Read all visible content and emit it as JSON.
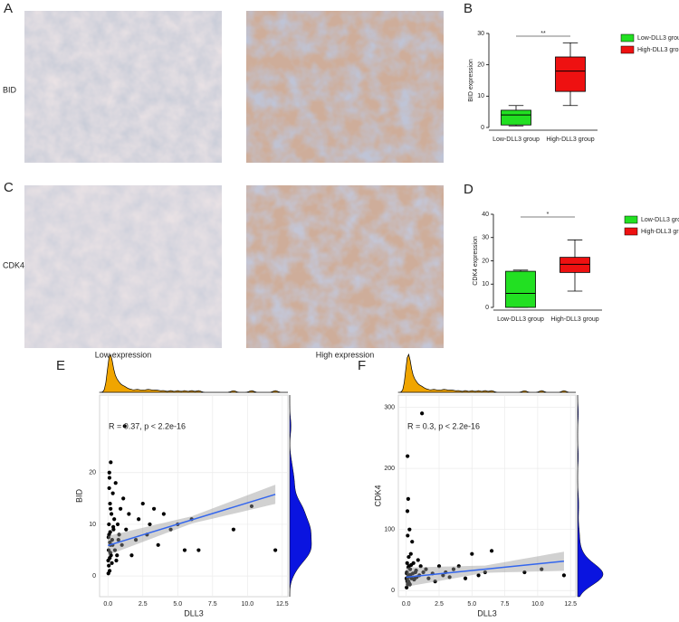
{
  "labels": {
    "panel_a": "A",
    "panel_b": "B",
    "panel_c": "C",
    "panel_d": "D",
    "panel_e": "E",
    "panel_f": "F",
    "row1": "BID",
    "row2": "CDK4",
    "caption_low": "Low expression",
    "caption_high": "High expression"
  },
  "chart_data": [
    {
      "type": "box",
      "ylabel": "BID expression",
      "significance": "**",
      "categories": [
        "Low-DLL3 group",
        "High-DLL3 group"
      ],
      "boxes": [
        {
          "name": "Low-DLL3 group",
          "color": "#22e022",
          "min": 0.5,
          "q1": 0.8,
          "median": 4,
          "q3": 5.5,
          "max": 7
        },
        {
          "name": "High-DLL3 group",
          "color": "#ee1111",
          "min": 7,
          "q1": 11.5,
          "median": 18,
          "q3": 22.5,
          "max": 27
        }
      ],
      "ylim": [
        0,
        30
      ],
      "yticks": [
        0,
        10,
        20,
        30
      ]
    },
    {
      "type": "box",
      "ylabel": "CDK4 expression",
      "significance": "*",
      "categories": [
        "Low-DLL3 group",
        "High-DLL3 group"
      ],
      "boxes": [
        {
          "name": "Low-DLL3 group",
          "color": "#22e022",
          "min": 0,
          "q1": 0,
          "median": 6,
          "q3": 15.5,
          "max": 16
        },
        {
          "name": "High-DLL3 group",
          "color": "#ee1111",
          "min": 7,
          "q1": 15,
          "median": 18.5,
          "q3": 21.5,
          "max": 29
        }
      ],
      "ylim": [
        0,
        40
      ],
      "yticks": [
        0,
        10,
        20,
        30,
        40
      ]
    },
    {
      "type": "scatter",
      "xlabel": "DLL3",
      "ylabel": "BID",
      "annotation": "R = 0.37, p < 2.2e-16",
      "color": "#000000",
      "fit_color": "#3366ee",
      "x": [
        0.02,
        0.05,
        0.08,
        0.1,
        0.12,
        0.15,
        0.18,
        0.2,
        0.22,
        0.25,
        0.3,
        0.35,
        0.4,
        0.45,
        0.5,
        0.55,
        0.6,
        0.7,
        0.8,
        0.9,
        1.0,
        1.1,
        1.2,
        1.3,
        1.5,
        1.7,
        2.0,
        2.2,
        2.5,
        2.8,
        3.0,
        3.3,
        3.6,
        4.0,
        4.5,
        5.0,
        5.5,
        6.0,
        6.5,
        9.0,
        10.3,
        12.0,
        0.03,
        0.06,
        0.09,
        0.11,
        0.14,
        0.17,
        0.04,
        0.07,
        0.13,
        0.16,
        0.19,
        0.28,
        0.33,
        0.38,
        0.65,
        0.75
      ],
      "y": [
        3,
        5,
        8,
        20,
        1,
        14,
        6,
        22,
        4,
        12,
        7,
        16,
        9,
        11,
        5,
        18,
        3,
        10,
        8,
        13,
        6,
        15,
        29,
        9,
        12,
        4,
        7,
        11,
        14,
        8,
        10,
        13,
        6,
        12,
        9,
        10,
        5,
        11,
        5,
        9,
        13.5,
        5,
        0.5,
        2,
        17,
        19,
        6.5,
        4.5,
        7.5,
        10,
        3.5,
        8.5,
        13,
        2.5,
        6,
        9.5,
        4,
        7
      ],
      "fit": {
        "x": [
          0,
          12
        ],
        "y": [
          5.9,
          15.8
        ]
      },
      "xlim": [
        -0.6,
        12.9
      ],
      "ylim": [
        -4,
        35
      ],
      "xticks": [
        {
          "value": 0,
          "label": "0.0"
        },
        {
          "value": 2.5,
          "label": "2.5"
        },
        {
          "value": 5,
          "label": "5.0"
        },
        {
          "value": 7.5,
          "label": "7.5"
        },
        {
          "value": 10,
          "label": "10.0"
        },
        {
          "value": 12.5,
          "label": "12.5"
        }
      ],
      "yticks": [
        0,
        10,
        20
      ]
    },
    {
      "type": "scatter",
      "xlabel": "DLL3",
      "ylabel": "CDK4",
      "annotation": "R = 0.3, p < 2.2e-16",
      "color": "#000000",
      "fit_color": "#3366ee",
      "x": [
        0.02,
        0.05,
        0.08,
        0.1,
        0.12,
        0.15,
        0.18,
        0.2,
        0.22,
        0.25,
        0.3,
        0.35,
        0.4,
        0.45,
        0.5,
        0.55,
        0.6,
        0.7,
        0.8,
        0.9,
        1.0,
        1.1,
        1.2,
        1.3,
        1.5,
        1.7,
        2.0,
        2.2,
        2.5,
        2.8,
        3.0,
        3.3,
        3.6,
        4.0,
        4.5,
        5.0,
        5.5,
        6.0,
        6.5,
        9.0,
        10.3,
        12.0,
        0.03,
        0.06,
        0.09,
        0.11,
        0.14,
        0.17,
        0.04,
        0.07,
        0.13,
        0.16,
        0.19,
        0.28,
        0.33,
        0.38,
        0.65,
        0.75
      ],
      "y": [
        20,
        30,
        15,
        220,
        10,
        150,
        25,
        40,
        12,
        100,
        35,
        60,
        20,
        80,
        28,
        45,
        18,
        30,
        22,
        50,
        25,
        40,
        290,
        30,
        35,
        20,
        28,
        15,
        40,
        25,
        30,
        22,
        35,
        40,
        20,
        60,
        25,
        30,
        65,
        30,
        35,
        25,
        5,
        18,
        130,
        90,
        22,
        15,
        28,
        45,
        12,
        38,
        55,
        10,
        26,
        42,
        20,
        33
      ],
      "fit": {
        "x": [
          0,
          12
        ],
        "y": [
          22,
          48
        ]
      },
      "xlim": [
        -0.6,
        12.9
      ],
      "ylim": [
        -10,
        320
      ],
      "xticks": [
        {
          "value": 0,
          "label": "0.0"
        },
        {
          "value": 2.5,
          "label": "2.5"
        },
        {
          "value": 5,
          "label": "5.0"
        },
        {
          "value": 7.5,
          "label": "7.5"
        },
        {
          "value": 10,
          "label": "10.0"
        },
        {
          "value": 12.5,
          "label": "12.5"
        }
      ],
      "yticks": [
        0,
        100,
        200,
        300
      ]
    }
  ]
}
